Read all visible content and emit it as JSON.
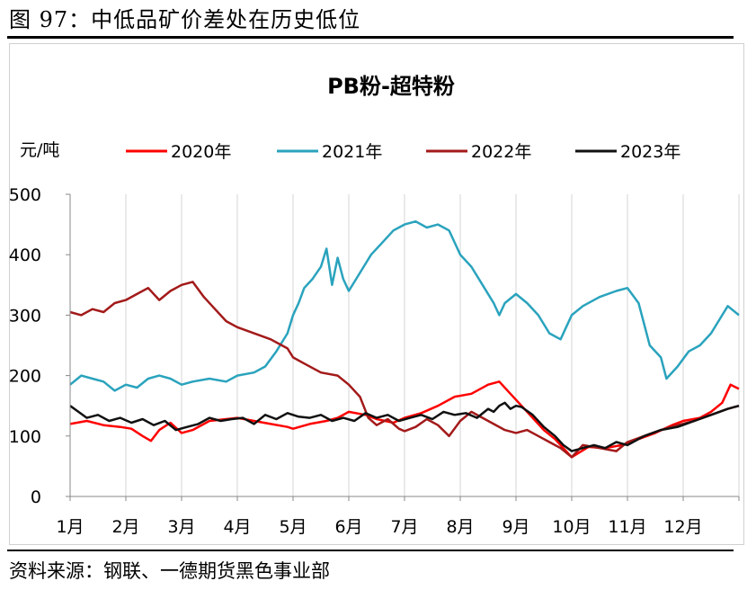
{
  "figure": {
    "caption": "图 97：中低品矿价差处在历史低位",
    "source": "资料来源：钢联、一德期货黑色事业部"
  },
  "chart_data": {
    "type": "line",
    "title": "PB粉-超特粉",
    "ylabel": "元/吨",
    "xlabel": "",
    "ylim": [
      0,
      500
    ],
    "yticks": [
      0,
      100,
      200,
      300,
      400,
      500
    ],
    "x_tick_labels": [
      "1月",
      "2月",
      "3月",
      "4月",
      "5月",
      "6月",
      "7月",
      "8月",
      "9月",
      "10月",
      "11月",
      "12月"
    ],
    "xlim": [
      1,
      13
    ],
    "grid": "vertical",
    "legend_position": "top",
    "series": [
      {
        "name": "2020年",
        "color": "#ff0000",
        "x": [
          1.0,
          1.3,
          1.6,
          1.9,
          2.1,
          2.3,
          2.45,
          2.6,
          2.8,
          3.0,
          3.2,
          3.5,
          3.8,
          4.0,
          4.3,
          4.6,
          4.9,
          5.0,
          5.3,
          5.6,
          5.8,
          6.0,
          6.3,
          6.5,
          6.8,
          7.0,
          7.3,
          7.6,
          7.9,
          8.2,
          8.5,
          8.7,
          8.9,
          9.1,
          9.3,
          9.5,
          9.7,
          9.9,
          10.0,
          10.3,
          10.6,
          10.9,
          11.2,
          11.5,
          11.8,
          12.0,
          12.3,
          12.5,
          12.7,
          12.85,
          13.0
        ],
        "values": [
          120,
          125,
          118,
          115,
          112,
          100,
          92,
          110,
          122,
          105,
          110,
          125,
          128,
          130,
          125,
          120,
          115,
          112,
          120,
          125,
          130,
          140,
          135,
          128,
          122,
          130,
          138,
          150,
          165,
          170,
          185,
          190,
          170,
          150,
          130,
          110,
          95,
          75,
          65,
          82,
          80,
          85,
          95,
          105,
          118,
          125,
          130,
          140,
          155,
          185,
          178
        ]
      },
      {
        "name": "2021年",
        "color": "#2aa3bd",
        "x": [
          1.0,
          1.2,
          1.4,
          1.6,
          1.8,
          2.0,
          2.2,
          2.4,
          2.6,
          2.8,
          3.0,
          3.2,
          3.5,
          3.8,
          4.0,
          4.3,
          4.5,
          4.7,
          4.9,
          5.0,
          5.1,
          5.2,
          5.35,
          5.5,
          5.6,
          5.7,
          5.8,
          5.9,
          6.0,
          6.2,
          6.4,
          6.6,
          6.8,
          7.0,
          7.2,
          7.4,
          7.6,
          7.8,
          8.0,
          8.2,
          8.4,
          8.6,
          8.7,
          8.8,
          9.0,
          9.2,
          9.4,
          9.6,
          9.8,
          10.0,
          10.2,
          10.5,
          10.8,
          11.0,
          11.2,
          11.4,
          11.6,
          11.7,
          11.9,
          12.1,
          12.3,
          12.5,
          12.7,
          12.8,
          13.0
        ],
        "values": [
          185,
          200,
          195,
          190,
          175,
          185,
          180,
          195,
          200,
          195,
          185,
          190,
          195,
          190,
          200,
          205,
          215,
          240,
          270,
          300,
          320,
          345,
          360,
          380,
          410,
          350,
          395,
          360,
          340,
          370,
          400,
          420,
          440,
          450,
          455,
          445,
          450,
          440,
          400,
          380,
          350,
          320,
          300,
          320,
          335,
          320,
          300,
          270,
          260,
          300,
          315,
          330,
          340,
          345,
          320,
          250,
          230,
          195,
          215,
          240,
          250,
          270,
          300,
          315,
          300
        ]
      },
      {
        "name": "2022年",
        "color": "#a31a1a",
        "x": [
          1.0,
          1.2,
          1.4,
          1.6,
          1.8,
          2.0,
          2.2,
          2.4,
          2.6,
          2.8,
          3.0,
          3.2,
          3.4,
          3.6,
          3.8,
          4.0,
          4.3,
          4.6,
          4.9,
          5.0,
          5.2,
          5.5,
          5.8,
          6.0,
          6.2,
          6.35,
          6.5,
          6.7,
          6.9,
          7.0,
          7.2,
          7.4,
          7.6,
          7.8,
          8.0,
          8.2,
          8.4,
          8.6,
          8.8,
          9.0,
          9.2,
          9.4,
          9.6,
          9.8,
          10.0,
          10.2,
          10.5,
          10.8,
          11.0,
          11.3,
          11.6,
          11.9,
          12.2,
          12.5,
          12.8,
          13.0
        ],
        "values": [
          305,
          300,
          310,
          305,
          320,
          325,
          335,
          345,
          325,
          340,
          350,
          355,
          330,
          310,
          290,
          280,
          270,
          260,
          245,
          230,
          220,
          205,
          200,
          185,
          165,
          130,
          118,
          128,
          112,
          108,
          115,
          128,
          118,
          100,
          125,
          140,
          130,
          120,
          110,
          105,
          110,
          100,
          90,
          80,
          65,
          85,
          80,
          75,
          90,
          100,
          110,
          118,
          125,
          135,
          145,
          150
        ]
      },
      {
        "name": "2023年",
        "color": "#111111",
        "x": [
          1.0,
          1.15,
          1.3,
          1.5,
          1.7,
          1.9,
          2.1,
          2.3,
          2.5,
          2.7,
          2.9,
          3.1,
          3.3,
          3.5,
          3.7,
          3.9,
          4.1,
          4.3,
          4.5,
          4.7,
          4.9,
          5.1,
          5.3,
          5.5,
          5.7,
          5.9,
          6.1,
          6.3,
          6.5,
          6.7,
          6.9,
          7.1,
          7.3,
          7.5,
          7.7,
          7.9,
          8.1,
          8.3,
          8.5,
          8.6,
          8.7,
          8.8,
          8.9,
          9.0,
          9.1,
          9.3,
          9.5,
          9.7,
          9.85,
          10.0,
          10.2,
          10.4,
          10.6,
          10.8,
          11.0,
          11.3,
          11.6,
          11.9,
          12.2,
          12.5,
          12.8,
          13.0
        ],
        "values": [
          150,
          140,
          130,
          135,
          125,
          130,
          122,
          128,
          118,
          125,
          110,
          115,
          120,
          130,
          125,
          128,
          130,
          120,
          135,
          128,
          138,
          132,
          130,
          135,
          125,
          130,
          125,
          138,
          130,
          135,
          125,
          130,
          135,
          128,
          140,
          135,
          138,
          130,
          145,
          140,
          150,
          155,
          145,
          150,
          148,
          135,
          115,
          100,
          85,
          75,
          80,
          85,
          80,
          90,
          85,
          100,
          110,
          115,
          125,
          135,
          145,
          150
        ]
      }
    ]
  }
}
